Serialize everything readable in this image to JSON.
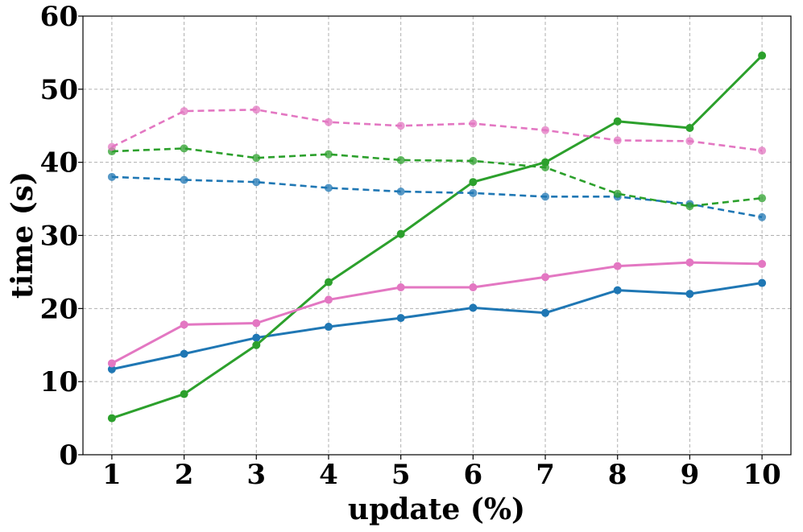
{
  "chart_data": {
    "type": "line",
    "title": "",
    "xlabel": "update (%)",
    "ylabel": "time (s)",
    "x": [
      1,
      2,
      3,
      4,
      5,
      6,
      7,
      8,
      9,
      10
    ],
    "xticks": [
      "1",
      "2",
      "3",
      "4",
      "5",
      "6",
      "7",
      "8",
      "9",
      "10"
    ],
    "yticks": [
      "0",
      "10",
      "20",
      "30",
      "40",
      "50",
      "60"
    ],
    "xlim": [
      0.6,
      10.4
    ],
    "ylim": [
      0,
      60
    ],
    "grid": true,
    "legend": false,
    "series": [
      {
        "color": "#1f77b4",
        "style": "solid",
        "values": [
          11.7,
          13.8,
          16.0,
          17.5,
          18.7,
          20.1,
          19.4,
          22.5,
          22.0,
          23.5
        ]
      },
      {
        "color": "#2ca02c",
        "style": "solid",
        "values": [
          5.0,
          8.3,
          15.0,
          23.6,
          30.2,
          37.3,
          40.0,
          45.6,
          44.7,
          54.6
        ]
      },
      {
        "color": "#e377c2",
        "style": "solid",
        "values": [
          12.5,
          17.8,
          18.0,
          21.2,
          22.9,
          22.9,
          24.3,
          25.8,
          26.3,
          26.1
        ]
      },
      {
        "color": "#1f77b4",
        "style": "dashed",
        "values": [
          38.0,
          37.6,
          37.3,
          36.5,
          36.0,
          35.8,
          35.3,
          35.3,
          34.3,
          32.5
        ]
      },
      {
        "color": "#2ca02c",
        "style": "dashed",
        "values": [
          41.5,
          41.9,
          40.6,
          41.1,
          40.3,
          40.2,
          39.3,
          35.7,
          34.0,
          35.1
        ]
      },
      {
        "color": "#e377c2",
        "style": "dashed",
        "values": [
          42.1,
          47.0,
          47.2,
          45.5,
          45.0,
          45.3,
          44.4,
          43.0,
          42.9,
          41.6
        ]
      }
    ]
  }
}
